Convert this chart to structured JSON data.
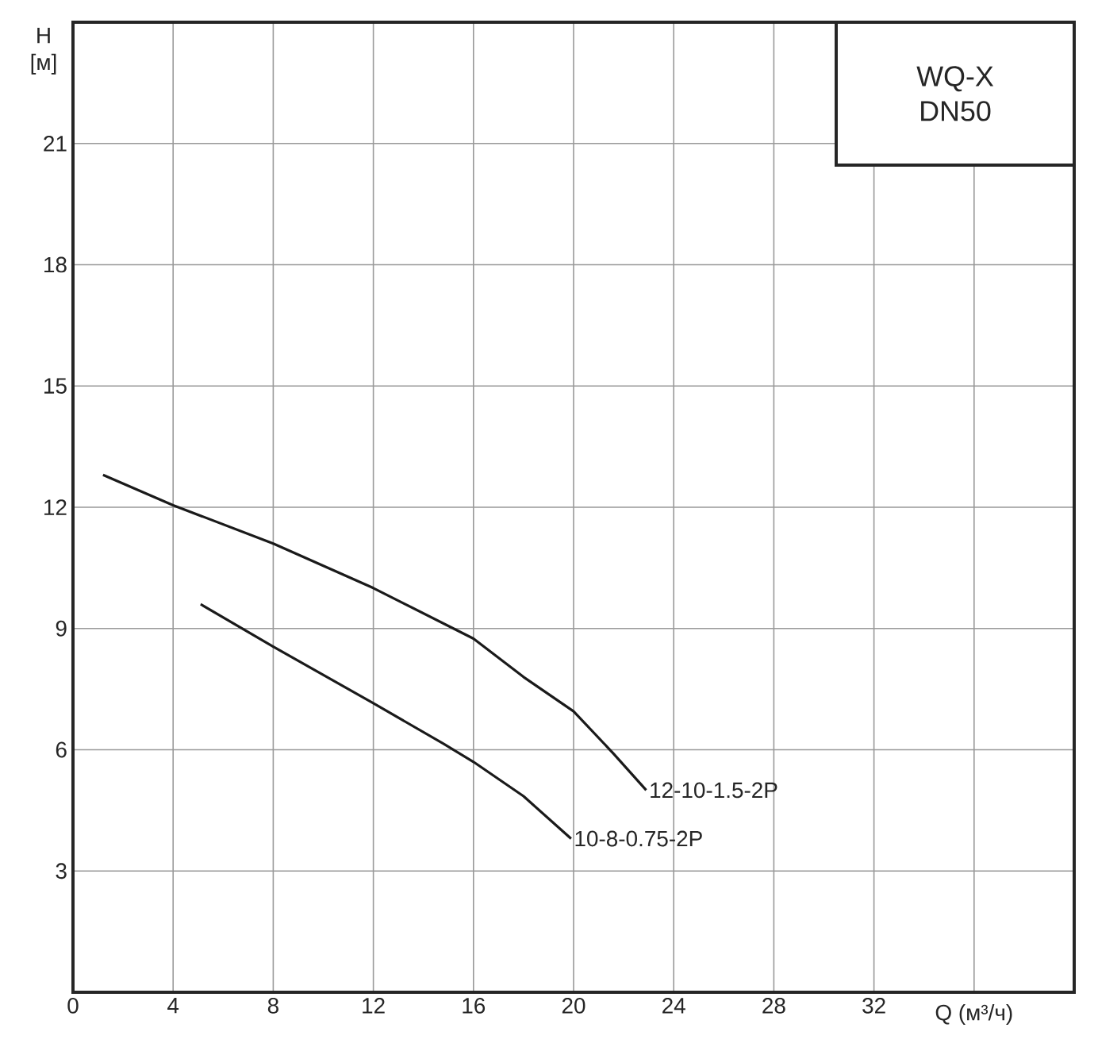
{
  "chart_data": {
    "type": "line",
    "title": "WQ-X DN50",
    "xlabel": "Q (м³/ч)",
    "ylabel": "H [м]",
    "xlim": [
      0,
      40
    ],
    "ylim": [
      0,
      24
    ],
    "xticks": [
      0,
      4,
      8,
      12,
      16,
      20,
      24,
      28,
      32,
      {
        "value": 36,
        "label": null
      }
    ],
    "yticks": [
      3,
      6,
      9,
      12,
      15,
      18,
      21
    ],
    "grid": true,
    "series": [
      {
        "name": "12-10-1.5-2P",
        "color": "#1a1a1a",
        "x": [
          1.2,
          4,
          8,
          12,
          16,
          18,
          20,
          21.6,
          22.9
        ],
        "values": [
          12.8,
          12.05,
          11.1,
          10.0,
          8.75,
          7.8,
          6.95,
          5.9,
          5.0
        ]
      },
      {
        "name": "10-8-0.75-2P",
        "color": "#1a1a1a",
        "x": [
          5.1,
          8,
          12,
          14.8,
          16,
          18,
          19.9
        ],
        "values": [
          9.6,
          8.55,
          7.15,
          6.15,
          5.7,
          4.85,
          3.8
        ]
      }
    ]
  }
}
